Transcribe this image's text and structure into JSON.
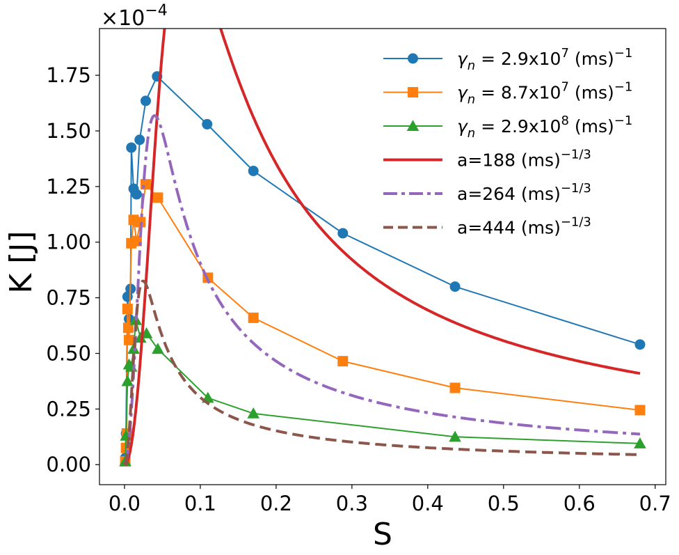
{
  "chart_data": {
    "type": "line",
    "title": "",
    "xlabel": "S",
    "ylabel": "K [J]",
    "y_multiplier": {
      "base": "×10",
      "exponent": "−4"
    },
    "xlim": [
      -0.033,
      0.714
    ],
    "ylim": [
      -0.09,
      1.96
    ],
    "x_ticks": [
      0.0,
      0.1,
      0.2,
      0.3,
      0.4,
      0.5,
      0.6,
      0.7
    ],
    "x_tick_labels": [
      "0.0",
      "0.1",
      "0.2",
      "0.3",
      "0.4",
      "0.5",
      "0.6",
      "0.7"
    ],
    "y_ticks": [
      0.0,
      0.25,
      0.5,
      0.75,
      1.0,
      1.25,
      1.5,
      1.75
    ],
    "y_tick_labels": [
      "0.00",
      "0.25",
      "0.50",
      "0.75",
      "1.00",
      "1.25",
      "1.50",
      "1.75"
    ],
    "legend_position": "top-right",
    "series": [
      {
        "name": "γn = 2.9x10^7 (ms)^-1",
        "legend": {
          "prefix": "γ",
          "sub": "n",
          "mid": " = 2.9x10",
          "sup1": "7",
          "unit": " (ms)",
          "sup2": "−1"
        },
        "color": "#1f77b4",
        "marker": "circle",
        "style": "solid-marker",
        "points": [
          [
            0.001,
            0.03
          ],
          [
            0.002,
            0.14
          ],
          [
            0.004,
            0.755
          ],
          [
            0.006,
            0.655
          ],
          [
            0.008,
            0.79
          ],
          [
            0.009,
            1.425
          ],
          [
            0.012,
            1.24
          ],
          [
            0.016,
            1.215
          ],
          [
            0.02,
            1.46
          ],
          [
            0.028,
            1.635
          ],
          [
            0.043,
            1.745
          ],
          [
            0.109,
            1.53
          ],
          [
            0.17,
            1.32
          ],
          [
            0.288,
            1.04
          ],
          [
            0.436,
            0.8
          ],
          [
            0.68,
            0.54
          ]
        ]
      },
      {
        "name": "γn = 8.7x10^7 (ms)^-1",
        "legend": {
          "prefix": "γ",
          "sub": "n",
          "mid": " = 8.7x10",
          "sup1": "7",
          "unit": " (ms)",
          "sup2": "−1"
        },
        "color": "#ff7f0e",
        "marker": "square",
        "style": "solid-marker",
        "points": [
          [
            0.001,
            0.015
          ],
          [
            0.002,
            0.075
          ],
          [
            0.003,
            0.14
          ],
          [
            0.004,
            0.7
          ],
          [
            0.005,
            0.615
          ],
          [
            0.006,
            0.56
          ],
          [
            0.009,
            0.995
          ],
          [
            0.012,
            1.1
          ],
          [
            0.016,
            1.005
          ],
          [
            0.021,
            1.09
          ],
          [
            0.028,
            1.26
          ],
          [
            0.044,
            1.2
          ],
          [
            0.11,
            0.84
          ],
          [
            0.17,
            0.66
          ],
          [
            0.288,
            0.465
          ],
          [
            0.436,
            0.345
          ],
          [
            0.68,
            0.245
          ]
        ]
      },
      {
        "name": "γn = 2.9x10^8 (ms)^-1",
        "legend": {
          "prefix": "γ",
          "sub": "n",
          "mid": " = 2.9x10",
          "sup1": "8",
          "unit": " (ms)",
          "sup2": "−1"
        },
        "color": "#2ca02c",
        "marker": "triangle",
        "style": "solid-marker",
        "points": [
          [
            0.001,
            0.015
          ],
          [
            0.002,
            0.13
          ],
          [
            0.004,
            0.375
          ],
          [
            0.006,
            0.45
          ],
          [
            0.009,
            0.44
          ],
          [
            0.012,
            0.52
          ],
          [
            0.015,
            0.65
          ],
          [
            0.021,
            0.57
          ],
          [
            0.029,
            0.59
          ],
          [
            0.044,
            0.52
          ],
          [
            0.11,
            0.3
          ],
          [
            0.17,
            0.23
          ],
          [
            0.436,
            0.125
          ],
          [
            0.68,
            0.095
          ]
        ]
      },
      {
        "name": "a=188 (ms)^-1/3",
        "legend": {
          "prefix": "a=188 (ms)",
          "sup2": "−1/3"
        },
        "color": "#d62728",
        "style": "solid-thick",
        "model": {
          "amplitude": 1.86,
          "peak_s": 0.05
        }
      },
      {
        "name": "a=264 (ms)^-1/3",
        "legend": {
          "prefix": "a=264 (ms)",
          "sup2": "−1/3"
        },
        "color": "#9467bd",
        "style": "dashdot-thick",
        "model": {
          "amplitude": 1.245,
          "peak_s": 0.025
        }
      },
      {
        "name": "a=444 (ms)^-1/3",
        "legend": {
          "prefix": "a=444 (ms)",
          "sup2": "−1/3"
        },
        "color": "#8c564b",
        "style": "dashed-thick",
        "model": {
          "amplitude": 0.655,
          "peak_s": 0.0155
        }
      }
    ]
  }
}
